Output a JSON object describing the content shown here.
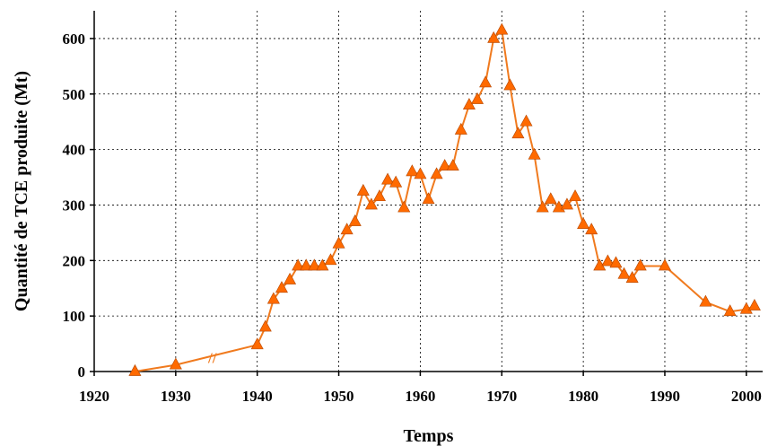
{
  "chart_data": {
    "type": "line",
    "xlabel": "Temps",
    "ylabel": "Quantité de TCE produite (Mt)",
    "xlim": [
      1920,
      2002
    ],
    "ylim": [
      0,
      650
    ],
    "x_ticks": [
      1920,
      1930,
      1940,
      1950,
      1960,
      1970,
      1980,
      1990,
      2000
    ],
    "y_ticks": [
      0,
      100,
      200,
      300,
      400,
      500,
      600
    ],
    "grid": true,
    "axis_break_marker": "//",
    "axis_break_at_x": 1934.5,
    "series": [
      {
        "color": "#f07a1e",
        "marker": "triangle",
        "marker_color": "#ff6a00",
        "x": [
          1925,
          1930,
          1940,
          1941,
          1942,
          1943,
          1944,
          1945,
          1946,
          1947,
          1948,
          1949,
          1950,
          1951,
          1952,
          1953,
          1954,
          1955,
          1956,
          1957,
          1958,
          1959,
          1960,
          1961,
          1962,
          1963,
          1964,
          1965,
          1966,
          1967,
          1968,
          1969,
          1970,
          1971,
          1972,
          1973,
          1974,
          1975,
          1976,
          1977,
          1978,
          1979,
          1980,
          1981,
          1982,
          1983,
          1984,
          1985,
          1986,
          1987,
          1990,
          1995,
          1998,
          2000,
          2001
        ],
        "y": [
          0,
          12,
          48,
          80,
          130,
          150,
          165,
          190,
          190,
          190,
          190,
          200,
          230,
          255,
          270,
          325,
          300,
          315,
          345,
          340,
          295,
          360,
          355,
          310,
          355,
          370,
          370,
          435,
          480,
          490,
          520,
          600,
          615,
          515,
          428,
          450,
          390,
          295,
          310,
          295,
          300,
          315,
          265,
          255,
          190,
          198,
          195,
          175,
          168,
          190,
          190,
          125,
          108,
          112,
          118
        ]
      }
    ]
  }
}
